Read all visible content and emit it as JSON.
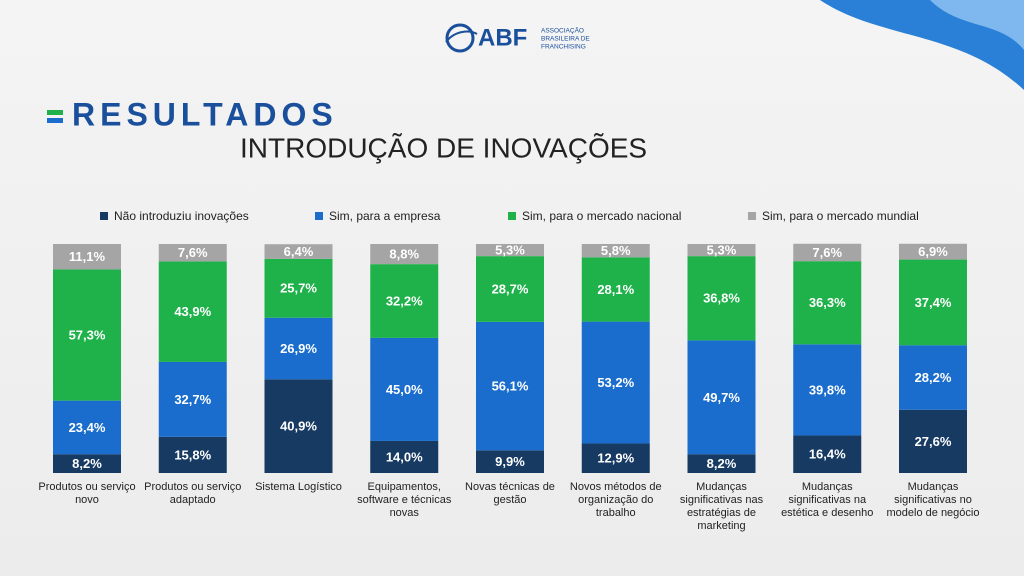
{
  "logo": {
    "name": "ABF",
    "lines": [
      "ASSOCIAÇÃO",
      "BRASILEIRA DE",
      "FRANCHISING"
    ]
  },
  "section": "RESULTADOS",
  "chart_data": {
    "type": "stacked_bar",
    "title": "INTRODUÇÃO DE INOVAÇÕES",
    "categories": [
      "Produtos ou serviço novo",
      "Produtos ou serviço adaptado",
      "Sistema Logístico",
      "Equipamentos, software e técnicas novas",
      "Novas técnicas de gestão",
      "Novos métodos de organização do trabalho",
      "Mudanças significativas nas estratégias de marketing",
      "Mudanças significativas na estética e desenho",
      "Mudanças significativas no modelo de negócio"
    ],
    "ylim": [
      0,
      100
    ],
    "series": [
      {
        "name": "Não introduziu inovações",
        "color": "#173a63",
        "values": [
          8.2,
          15.8,
          40.9,
          14.0,
          9.9,
          12.9,
          8.2,
          16.4,
          27.6
        ],
        "value_labels": [
          "8,2%",
          "15,8%",
          "40,9%",
          "14,0%",
          "9,9%",
          "12,9%",
          "8,2%",
          "16,4%",
          "27,6%"
        ]
      },
      {
        "name": "Sim, para a empresa",
        "color": "#1a6dcc",
        "values": [
          23.4,
          32.7,
          26.9,
          45.0,
          56.1,
          53.2,
          49.7,
          39.8,
          28.2
        ],
        "value_labels": [
          "23,4%",
          "32,7%",
          "26,9%",
          "45,0%",
          "56,1%",
          "53,2%",
          "49,7%",
          "39,8%",
          "28,2%"
        ]
      },
      {
        "name": "Sim, para o mercado nacional",
        "color": "#1fb24b",
        "values": [
          57.3,
          43.9,
          25.7,
          32.2,
          28.7,
          28.1,
          36.8,
          36.3,
          37.4
        ],
        "value_labels": [
          "57,3%",
          "43,9%",
          "25,7%",
          "32,2%",
          "28,7%",
          "28,1%",
          "36,8%",
          "36,3%",
          "37,4%"
        ]
      },
      {
        "name": "Sim, para o mercado mundial",
        "color": "#a5a5a5",
        "values": [
          11.1,
          7.6,
          6.4,
          8.8,
          5.3,
          5.8,
          5.3,
          7.6,
          6.9
        ],
        "value_labels": [
          "11,1%",
          "7,6%",
          "6,4%",
          "8,8%",
          "5,3%",
          "5,8%",
          "5,3%",
          "7,6%",
          "6,9%"
        ]
      }
    ]
  }
}
